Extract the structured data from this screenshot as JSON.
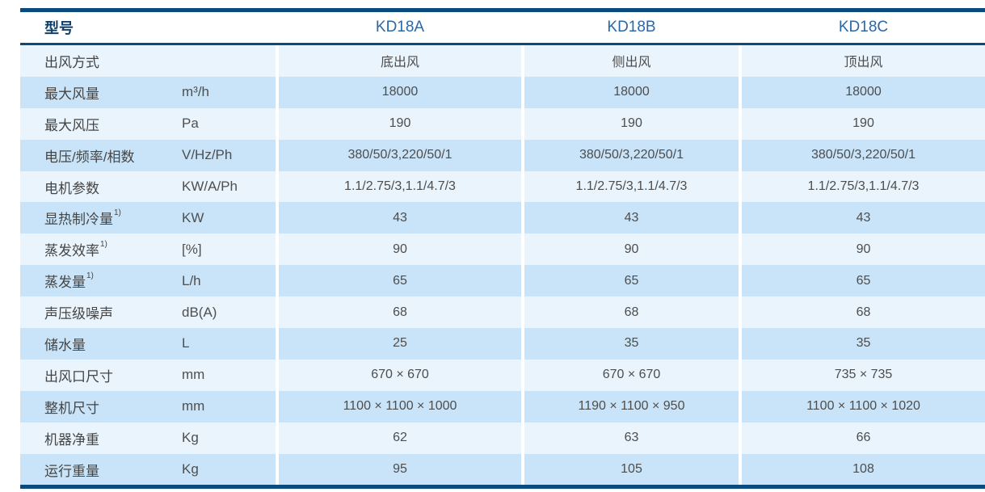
{
  "table": {
    "header": {
      "label": "型号",
      "models": [
        "KD18A",
        "KD18B",
        "KD18C"
      ]
    },
    "rows": [
      {
        "label": "出风方式",
        "sup": "",
        "unit": "",
        "values": [
          "底出风",
          "侧出风",
          "顶出风"
        ]
      },
      {
        "label": "最大风量",
        "sup": "",
        "unit": "m³/h",
        "values": [
          "18000",
          "18000",
          "18000"
        ]
      },
      {
        "label": "最大风压",
        "sup": "",
        "unit": "Pa",
        "values": [
          "190",
          "190",
          "190"
        ]
      },
      {
        "label": "电压/频率/相数",
        "sup": "",
        "unit": "V/Hz/Ph",
        "values": [
          "380/50/3,220/50/1",
          "380/50/3,220/50/1",
          "380/50/3,220/50/1"
        ]
      },
      {
        "label": "电机参数",
        "sup": "",
        "unit": "KW/A/Ph",
        "values": [
          "1.1/2.75/3,1.1/4.7/3",
          "1.1/2.75/3,1.1/4.7/3",
          "1.1/2.75/3,1.1/4.7/3"
        ]
      },
      {
        "label": "显热制冷量",
        "sup": "1)",
        "unit": "KW",
        "values": [
          "43",
          "43",
          "43"
        ]
      },
      {
        "label": "蒸发效率",
        "sup": "1)",
        "unit": "[%]",
        "values": [
          "90",
          "90",
          "90"
        ]
      },
      {
        "label": "蒸发量",
        "sup": "1)",
        "unit": "L/h",
        "values": [
          "65",
          "65",
          "65"
        ]
      },
      {
        "label": "声压级噪声",
        "sup": "",
        "unit": "dB(A)",
        "values": [
          "68",
          "68",
          "68"
        ]
      },
      {
        "label": "储水量",
        "sup": "",
        "unit": "L",
        "values": [
          "25",
          "35",
          "35"
        ]
      },
      {
        "label": "出风口尺寸",
        "sup": "",
        "unit": "mm",
        "values": [
          "670 × 670",
          "670 × 670",
          "735 × 735"
        ]
      },
      {
        "label": "整机尺寸",
        "sup": "",
        "unit": "mm",
        "values": [
          "1100 × 1100 × 1000",
          "1190 × 1100 × 950",
          "1100 × 1100 × 1020"
        ]
      },
      {
        "label": "机器净重",
        "sup": "",
        "unit": "Kg",
        "values": [
          "62",
          "63",
          "66"
        ]
      },
      {
        "label": "运行重量",
        "sup": "",
        "unit": "Kg",
        "values": [
          "95",
          "105",
          "108"
        ]
      }
    ],
    "colors": {
      "border_line": "#0a4b7e",
      "row_light": "#eaf4fc",
      "row_dark": "#c9e4f8",
      "header_label_text": "#0e3f6b",
      "model_text": "#2a68a6",
      "body_text": "#4d4d4d"
    }
  }
}
